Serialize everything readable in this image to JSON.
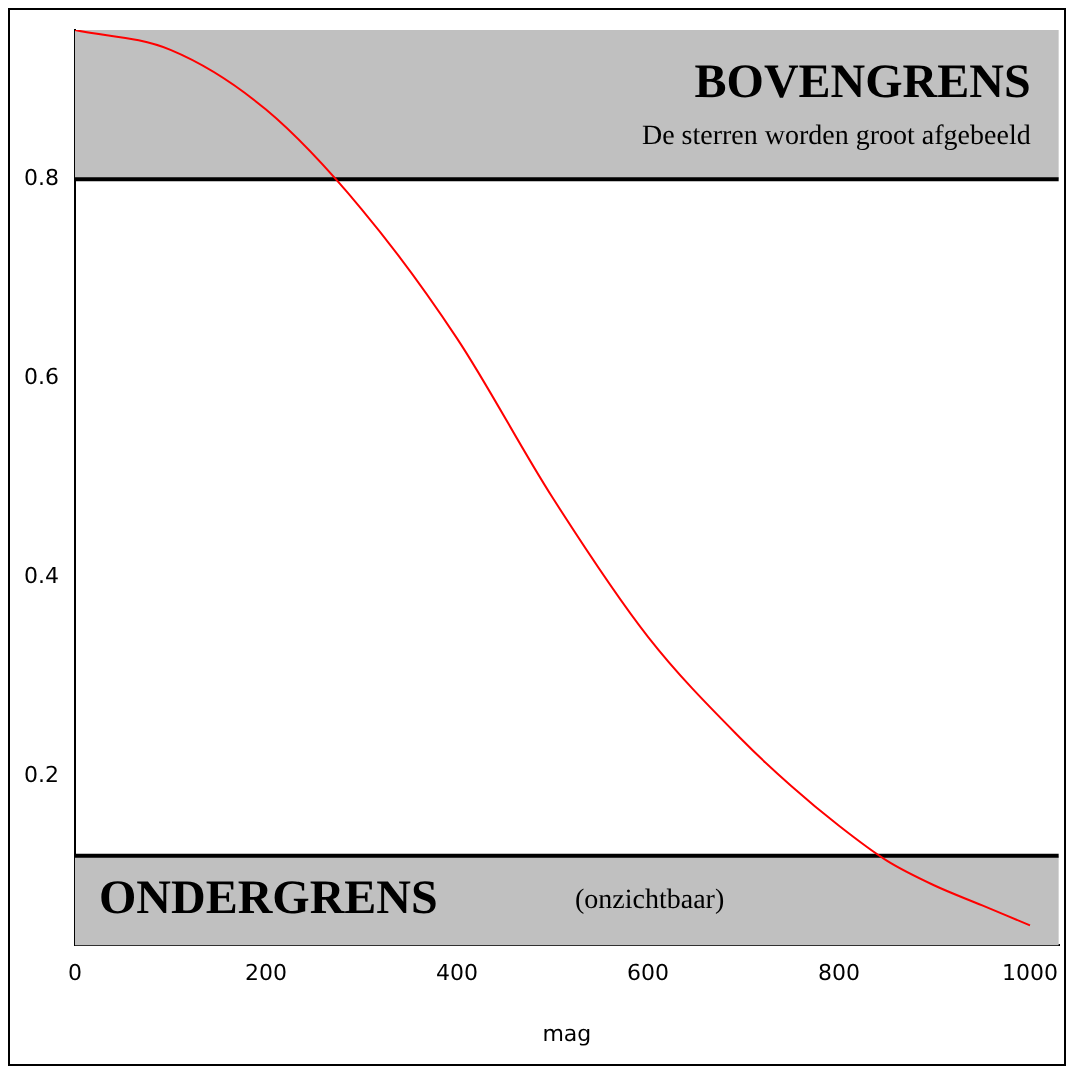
{
  "chart_data": {
    "type": "line",
    "xlabel": "mag",
    "x": [
      0,
      100,
      200,
      300,
      400,
      500,
      600,
      700,
      750,
      800,
      850,
      900,
      950,
      1000
    ],
    "series": [
      {
        "color": "#ff0000",
        "values": [
          0.95,
          0.93,
          0.87,
          0.77,
          0.64,
          0.48,
          0.34,
          0.235,
          0.19,
          0.15,
          0.115,
          0.09,
          0.07,
          0.05
        ]
      }
    ],
    "xlim": [
      0,
      1030
    ],
    "ylim": [
      0.03,
      0.95
    ],
    "xticks": [
      0,
      200,
      400,
      600,
      800,
      1000
    ],
    "yticks": [
      0.2,
      0.4,
      0.6,
      0.8
    ],
    "bands": [
      {
        "axis": "y",
        "from": 0.8,
        "to": 0.95,
        "label": "BOVENGRENS",
        "color": "#c0c0c0"
      },
      {
        "axis": "y",
        "from": 0.03,
        "to": 0.12,
        "label": "ONDERGRENS",
        "color": "#c0c0c0"
      }
    ],
    "ref_lines": [
      {
        "axis": "y",
        "value": 0.8,
        "color": "#000000"
      },
      {
        "axis": "y",
        "value": 0.12,
        "color": "#000000"
      }
    ],
    "annotations": [
      "De sterren worden groot afgebeeld",
      "(onzichtbaar)"
    ],
    "grid": false,
    "legend": false,
    "marker": "none",
    "line_style": "solid"
  }
}
